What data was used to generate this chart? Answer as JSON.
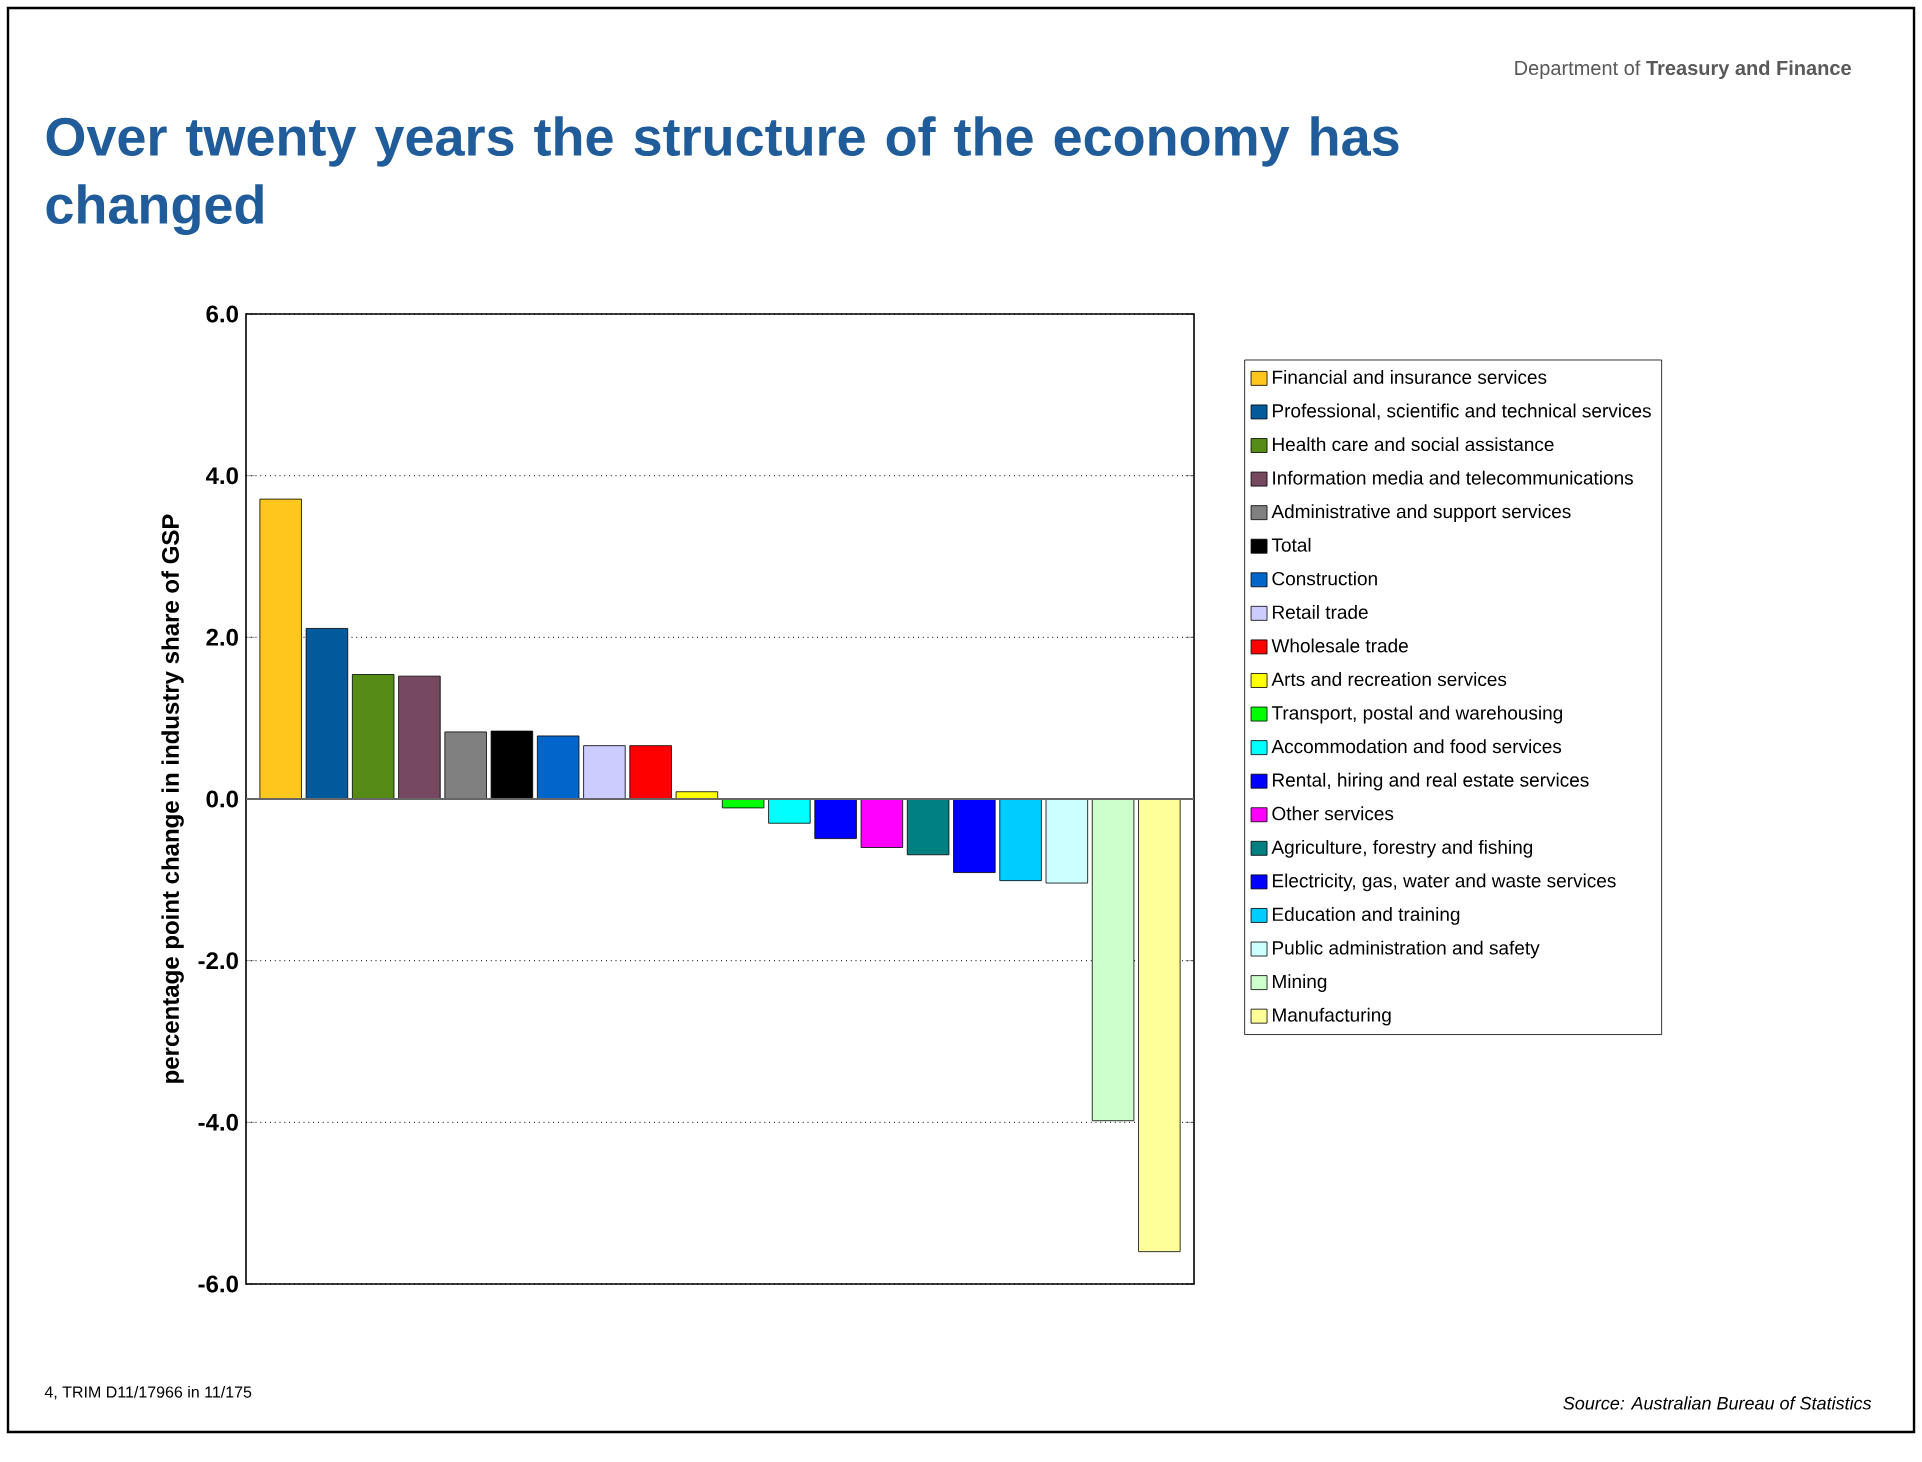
{
  "chart_data": {
    "type": "bar",
    "title": "Over twenty years the structure of the economy has changed",
    "ylabel": "percentage point change in industry share of GSP",
    "annotations": [
      "Department of **Treasury and Finance**",
      "4, TRIM D11/17966 in 11/175",
      "Source: Australian Bureau of Statistics"
    ],
    "categories": [
      null,
      null,
      null,
      null,
      null,
      null,
      null,
      null,
      null,
      null,
      null,
      null,
      null,
      null,
      null,
      null,
      null,
      null,
      null,
      null
    ],
    "series": [
      {
        "name": "Financial and insurance services",
        "color": "#ffc61e",
        "values": [
          3.71,
          null,
          null,
          null,
          null,
          null,
          null,
          null,
          null,
          null,
          null,
          null,
          null,
          null,
          null,
          null,
          null,
          null,
          null,
          null
        ]
      },
      {
        "name": "Professional, scientific and technical services",
        "color": "#005a9b",
        "values": [
          null,
          2.11,
          null,
          null,
          null,
          null,
          null,
          null,
          null,
          null,
          null,
          null,
          null,
          null,
          null,
          null,
          null,
          null,
          null,
          null
        ]
      },
      {
        "name": "Health care and social assistance",
        "color": "#568c15",
        "values": [
          null,
          null,
          1.54,
          null,
          null,
          null,
          null,
          null,
          null,
          null,
          null,
          null,
          null,
          null,
          null,
          null,
          null,
          null,
          null,
          null
        ]
      },
      {
        "name": "Information media and telecommunications",
        "color": "#774960",
        "values": [
          null,
          null,
          null,
          1.52,
          null,
          null,
          null,
          null,
          null,
          null,
          null,
          null,
          null,
          null,
          null,
          null,
          null,
          null,
          null,
          null
        ]
      },
      {
        "name": "Administrative and support services",
        "color": "#808080",
        "values": [
          null,
          null,
          null,
          null,
          0.83,
          null,
          null,
          null,
          null,
          null,
          null,
          null,
          null,
          null,
          null,
          null,
          null,
          null,
          null,
          null
        ]
      },
      {
        "name": "Total",
        "color": "#000000",
        "values": [
          null,
          null,
          null,
          null,
          null,
          0.84,
          null,
          null,
          null,
          null,
          null,
          null,
          null,
          null,
          null,
          null,
          null,
          null,
          null,
          null
        ]
      },
      {
        "name": "Construction",
        "color": "#0066cc",
        "values": [
          null,
          null,
          null,
          null,
          null,
          null,
          0.78,
          null,
          null,
          null,
          null,
          null,
          null,
          null,
          null,
          null,
          null,
          null,
          null,
          null
        ]
      },
      {
        "name": "Retail trade",
        "color": "#ccccff",
        "values": [
          null,
          null,
          null,
          null,
          null,
          null,
          null,
          0.66,
          null,
          null,
          null,
          null,
          null,
          null,
          null,
          null,
          null,
          null,
          null,
          null
        ]
      },
      {
        "name": "Wholesale trade",
        "color": "#ff0000",
        "values": [
          null,
          null,
          null,
          null,
          null,
          null,
          null,
          null,
          0.66,
          null,
          null,
          null,
          null,
          null,
          null,
          null,
          null,
          null,
          null,
          null
        ]
      },
      {
        "name": "Arts and recreation services",
        "color": "#ffff00",
        "values": [
          null,
          null,
          null,
          null,
          null,
          null,
          null,
          null,
          null,
          0.09,
          null,
          null,
          null,
          null,
          null,
          null,
          null,
          null,
          null,
          null
        ]
      },
      {
        "name": "Transport, postal and warehousing",
        "color": "#00ff00",
        "values": [
          null,
          null,
          null,
          null,
          null,
          null,
          null,
          null,
          null,
          null,
          -0.11,
          null,
          null,
          null,
          null,
          null,
          null,
          null,
          null,
          null
        ]
      },
      {
        "name": "Accommodation and food services",
        "color": "#00ffff",
        "values": [
          null,
          null,
          null,
          null,
          null,
          null,
          null,
          null,
          null,
          null,
          null,
          -0.3,
          null,
          null,
          null,
          null,
          null,
          null,
          null,
          null
        ]
      },
      {
        "name": "Rental, hiring and real estate services",
        "color": "#0000ff",
        "values": [
          null,
          null,
          null,
          null,
          null,
          null,
          null,
          null,
          null,
          null,
          null,
          null,
          -0.49,
          null,
          null,
          null,
          null,
          null,
          null,
          null
        ]
      },
      {
        "name": "Other services",
        "color": "#ff00ff",
        "values": [
          null,
          null,
          null,
          null,
          null,
          null,
          null,
          null,
          null,
          null,
          null,
          null,
          null,
          -0.6,
          null,
          null,
          null,
          null,
          null,
          null
        ]
      },
      {
        "name": "Agriculture, forestry and fishing",
        "color": "#008080",
        "values": [
          null,
          null,
          null,
          null,
          null,
          null,
          null,
          null,
          null,
          null,
          null,
          null,
          null,
          null,
          -0.69,
          null,
          null,
          null,
          null,
          null
        ]
      },
      {
        "name": "Electricity, gas, water and waste services",
        "color": "#0000fe",
        "values": [
          null,
          null,
          null,
          null,
          null,
          null,
          null,
          null,
          null,
          null,
          null,
          null,
          null,
          null,
          null,
          -0.91,
          null,
          null,
          null,
          null
        ]
      },
      {
        "name": "Education and training",
        "color": "#00ccff",
        "values": [
          null,
          null,
          null,
          null,
          null,
          null,
          null,
          null,
          null,
          null,
          null,
          null,
          null,
          null,
          null,
          null,
          -1.01,
          null,
          null,
          null
        ]
      },
      {
        "name": "Public administration and safety",
        "color": "#ccffff",
        "values": [
          null,
          null,
          null,
          null,
          null,
          null,
          null,
          null,
          null,
          null,
          null,
          null,
          null,
          null,
          null,
          null,
          null,
          -1.04,
          null,
          null
        ]
      },
      {
        "name": "Mining",
        "color": "#ccffcc",
        "values": [
          null,
          null,
          null,
          null,
          null,
          null,
          null,
          null,
          null,
          null,
          null,
          null,
          null,
          null,
          null,
          null,
          null,
          null,
          -3.98,
          null
        ]
      },
      {
        "name": "Manufacturing",
        "color": "#ffff99",
        "values": [
          null,
          null,
          null,
          null,
          null,
          null,
          null,
          null,
          null,
          null,
          null,
          null,
          null,
          null,
          null,
          null,
          null,
          null,
          null,
          -5.6
        ]
      }
    ],
    "ylim": [
      -6,
      6
    ],
    "yticks": [
      {
        "value": -6,
        "label": "-6.0"
      },
      {
        "value": -4,
        "label": "-4.0"
      },
      {
        "value": -2,
        "label": "-2.0"
      },
      {
        "value": 0,
        "label": "0.0"
      },
      {
        "value": 2,
        "label": "2.0"
      },
      {
        "value": 4,
        "label": "4.0"
      },
      {
        "value": 6,
        "label": "6.0"
      }
    ],
    "grid": "y",
    "legend": "right"
  }
}
